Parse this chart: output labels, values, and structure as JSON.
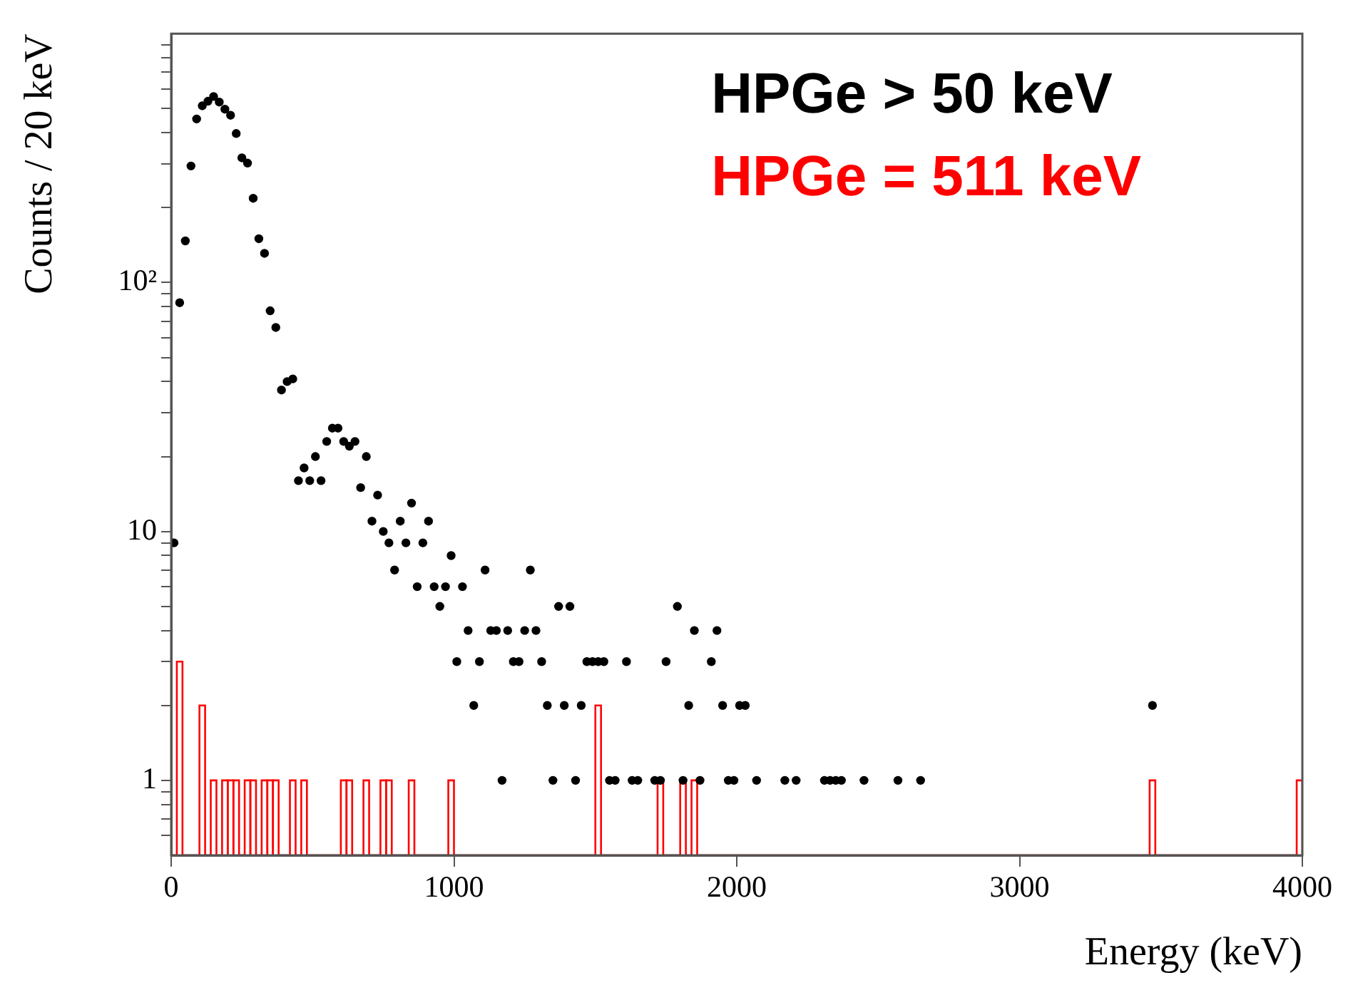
{
  "chart_data": {
    "type": "scatter",
    "xlabel": "Energy (keV)",
    "ylabel": "Counts / 20 keV",
    "log": "y",
    "legend": "top right",
    "marker": "circle",
    "xlim": [
      0,
      4000
    ],
    "xticks": [
      0,
      1000,
      2000,
      3000,
      4000
    ],
    "ylim": [
      0.5,
      1000
    ],
    "yticks": [
      {
        "value": 0.6,
        "label": null
      },
      {
        "value": 0.7,
        "label": null
      },
      {
        "value": 0.8,
        "label": null
      },
      {
        "value": 0.9,
        "label": null
      },
      1,
      {
        "value": 2,
        "label": null
      },
      {
        "value": 3,
        "label": null
      },
      {
        "value": 4,
        "label": null
      },
      {
        "value": 5,
        "label": null
      },
      {
        "value": 6,
        "label": null
      },
      {
        "value": 7,
        "label": null
      },
      {
        "value": 8,
        "label": null
      },
      {
        "value": 9,
        "label": null
      },
      10,
      {
        "value": 20,
        "label": null
      },
      {
        "value": 30,
        "label": null
      },
      {
        "value": 40,
        "label": null
      },
      {
        "value": 50,
        "label": null
      },
      {
        "value": 60,
        "label": null
      },
      {
        "value": 70,
        "label": null
      },
      {
        "value": 80,
        "label": null
      },
      {
        "value": 90,
        "label": null
      },
      {
        "value": 100,
        "label": "10²"
      },
      {
        "value": 200,
        "label": null
      },
      {
        "value": 300,
        "label": null
      },
      {
        "value": 400,
        "label": null
      },
      {
        "value": 500,
        "label": null
      },
      {
        "value": 600,
        "label": null
      },
      {
        "value": 700,
        "label": null
      },
      {
        "value": 800,
        "label": null
      },
      {
        "value": 900,
        "label": null
      }
    ],
    "series": [
      {
        "name": "HPGe > 50 keV",
        "type": "scatter",
        "color": "#000000",
        "x": [
          10,
          30,
          50,
          70,
          90,
          110,
          130,
          150,
          170,
          190,
          210,
          230,
          250,
          270,
          290,
          310,
          330,
          350,
          370,
          390,
          410,
          430,
          450,
          470,
          490,
          510,
          530,
          550,
          570,
          590,
          610,
          630,
          650,
          670,
          690,
          710,
          730,
          750,
          770,
          790,
          810,
          830,
          850,
          870,
          890,
          910,
          930,
          950,
          970,
          990,
          1010,
          1030,
          1050,
          1070,
          1090,
          1110,
          1130,
          1150,
          1170,
          1190,
          1210,
          1230,
          1250,
          1270,
          1290,
          1310,
          1330,
          1350,
          1370,
          1390,
          1410,
          1430,
          1450,
          1470,
          1490,
          1510,
          1530,
          1550,
          1570,
          1610,
          1630,
          1650,
          1710,
          1730,
          1750,
          1790,
          1810,
          1830,
          1850,
          1870,
          1910,
          1930,
          1950,
          1970,
          1990,
          2010,
          2030,
          2070,
          2170,
          2210,
          2310,
          2330,
          2350,
          2370,
          2450,
          2570,
          2650,
          3470
        ],
        "values": [
          9,
          83,
          147,
          294,
          454,
          513,
          535,
          559,
          531,
          497,
          470,
          397,
          317,
          302,
          218,
          150,
          131,
          77,
          66,
          37,
          40,
          41,
          16,
          18,
          16,
          20,
          16,
          23,
          26,
          26,
          23,
          22,
          23,
          15,
          20,
          11,
          14,
          10,
          9,
          7,
          11,
          9,
          13,
          6,
          9,
          11,
          6,
          5,
          6,
          8,
          3,
          6,
          4,
          2,
          3,
          7,
          4,
          4,
          1,
          4,
          3,
          3,
          4,
          7,
          4,
          3,
          2,
          1,
          5,
          2,
          5,
          1,
          2,
          3,
          3,
          3,
          3,
          1,
          1,
          3,
          1,
          1,
          1,
          1,
          3,
          5,
          1,
          2,
          4,
          1,
          3,
          4,
          2,
          1,
          1,
          2,
          2,
          1,
          1,
          1,
          1,
          1,
          1,
          1,
          1,
          1,
          1,
          2
        ]
      },
      {
        "name": "HPGe = 511 keV",
        "type": "histogram",
        "color": "#ff0000",
        "bins": [
          0,
          20,
          40,
          60,
          80,
          100,
          120,
          140,
          160,
          180,
          200,
          220,
          240,
          260,
          280,
          300,
          320,
          340,
          360,
          380,
          400,
          420,
          440,
          460,
          480,
          500,
          520,
          540,
          560,
          580,
          600,
          620,
          640,
          660,
          680,
          700,
          720,
          740,
          760,
          780,
          800,
          820,
          840,
          860,
          880,
          900,
          920,
          940,
          960,
          980,
          1000,
          1020,
          1040,
          1060,
          1080,
          1100,
          1120,
          1140,
          1160,
          1180,
          1200,
          1220,
          1240,
          1260,
          1280,
          1300,
          1320,
          1340,
          1360,
          1380,
          1400,
          1420,
          1440,
          1460,
          1480,
          1500,
          1520,
          1540,
          1560,
          1580,
          1600,
          1620,
          1640,
          1660,
          1680,
          1700,
          1720,
          1740,
          1760,
          1780,
          1800,
          1820,
          1840,
          1860,
          1880,
          1900,
          1920,
          1940,
          1960,
          1980,
          2000,
          2020,
          2040,
          2060,
          2080,
          2100,
          2120,
          2140,
          2160,
          2180,
          2200,
          2220,
          2240,
          2260,
          2280,
          2300,
          2320,
          2340,
          2360,
          2380,
          2400,
          2420,
          2440,
          2460,
          2480,
          2500,
          2520,
          2540,
          2560,
          2580,
          2600,
          2620,
          2640,
          2660,
          2680,
          2700,
          2720,
          2740,
          2760,
          2780,
          2800,
          2820,
          2840,
          2860,
          2880,
          2900,
          2920,
          2940,
          2960,
          2980,
          3000,
          3020,
          3040,
          3060,
          3080,
          3100,
          3120,
          3140,
          3160,
          3180,
          3200,
          3220,
          3240,
          3260,
          3280,
          3300,
          3320,
          3340,
          3360,
          3380,
          3400,
          3420,
          3440,
          3460,
          3480,
          3500,
          3520,
          3540,
          3560,
          3580,
          3600,
          3620,
          3640,
          3660,
          3680,
          3700,
          3720,
          3740,
          3760,
          3780,
          3800,
          3820,
          3840,
          3860,
          3880,
          3900,
          3920,
          3940,
          3960,
          3980,
          4000
        ],
        "values": [
          null,
          3,
          null,
          null,
          null,
          2,
          null,
          1,
          null,
          1,
          1,
          1,
          null,
          1,
          1,
          null,
          1,
          1,
          1,
          null,
          null,
          1,
          null,
          1,
          null,
          null,
          null,
          null,
          null,
          null,
          1,
          1,
          null,
          null,
          1,
          null,
          null,
          1,
          1,
          null,
          null,
          null,
          1,
          null,
          null,
          null,
          null,
          null,
          null,
          1,
          null,
          null,
          null,
          null,
          null,
          null,
          null,
          null,
          null,
          null,
          null,
          null,
          null,
          null,
          null,
          null,
          null,
          null,
          null,
          null,
          null,
          null,
          null,
          null,
          null,
          2,
          null,
          null,
          null,
          null,
          null,
          null,
          null,
          null,
          null,
          null,
          1,
          null,
          null,
          null,
          1,
          null,
          1,
          null,
          null,
          null,
          null,
          null,
          null,
          null,
          null,
          null,
          null,
          null,
          null,
          null,
          null,
          null,
          null,
          null,
          null,
          null,
          null,
          null,
          null,
          null,
          null,
          null,
          null,
          null,
          null,
          null,
          null,
          null,
          null,
          null,
          null,
          null,
          null,
          null,
          null,
          null,
          null,
          null,
          null,
          null,
          null,
          null,
          null,
          null,
          null,
          null,
          null,
          null,
          null,
          null,
          null,
          null,
          null,
          null,
          null,
          null,
          null,
          null,
          null,
          null,
          null,
          null,
          null,
          null,
          null,
          null,
          null,
          null,
          null,
          null,
          null,
          null,
          null,
          null,
          null,
          null,
          null,
          1,
          null,
          null,
          null,
          null,
          null,
          null,
          null,
          null,
          null,
          null,
          null,
          null,
          null,
          null,
          null,
          null,
          null,
          null,
          null,
          null,
          null,
          null,
          null,
          null,
          null,
          1
        ]
      }
    ]
  }
}
